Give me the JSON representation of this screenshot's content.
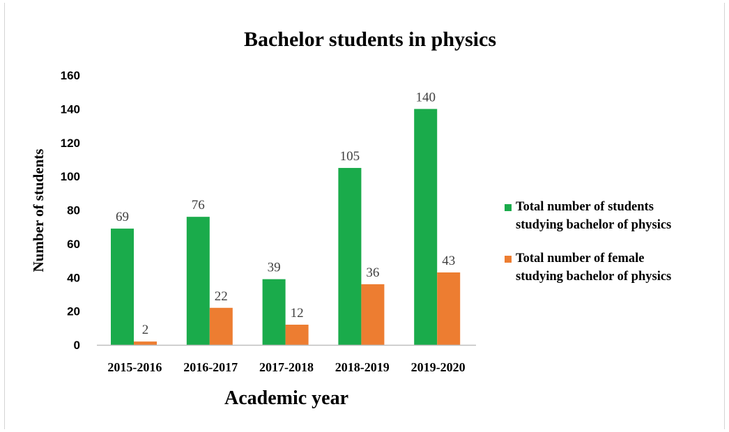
{
  "chart_data": {
    "type": "bar",
    "title": "Bachelor students in physics",
    "xlabel": "Academic year",
    "ylabel": "Number of students",
    "categories": [
      "2015-2016",
      "2016-2017",
      "2017-2018",
      "2018-2019",
      "2019-2020"
    ],
    "series": [
      {
        "name": "Total number of students studying bachelor of physics",
        "legend_lines": [
          "Total number of students",
          "studying bachelor of physics"
        ],
        "color": "#1aab4b",
        "values": [
          69,
          76,
          39,
          105,
          140
        ]
      },
      {
        "name": "Total number of female studying bachelor of physics",
        "legend_lines": [
          "Total number of female",
          "studying bachelor of physics"
        ],
        "color": "#ed7d31",
        "values": [
          2,
          22,
          12,
          36,
          43
        ]
      }
    ],
    "ylim": [
      0,
      160
    ],
    "yticks": [
      0,
      20,
      40,
      60,
      80,
      100,
      120,
      140,
      160
    ],
    "grid": false,
    "legend_position": "right"
  }
}
